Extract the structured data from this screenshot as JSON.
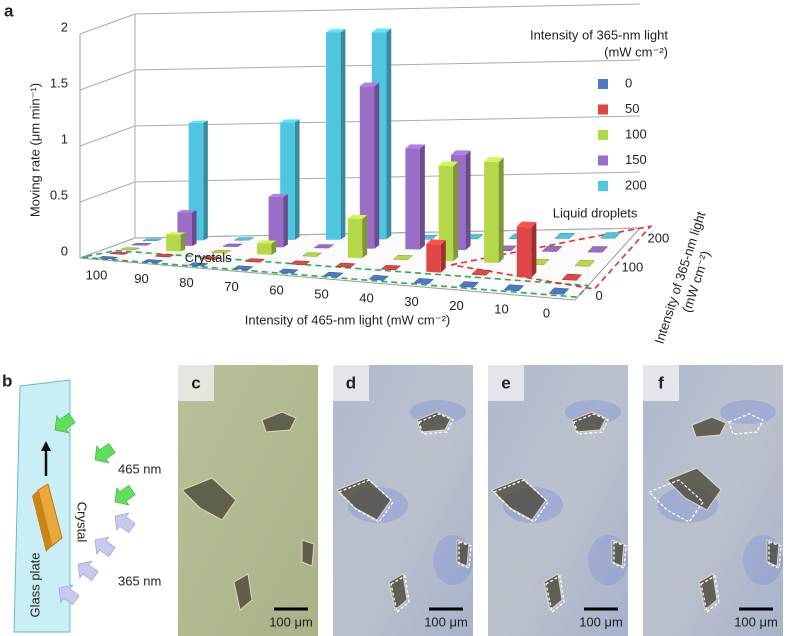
{
  "chart_data": {
    "type": "bar3d",
    "panel_label": "a",
    "y_label": "Moving rate (μm min⁻¹)",
    "x_label": "Intensity of 465-nm light (mW cm⁻²)",
    "depth_label": [
      "Intensity of 365-nm light",
      "(mW cm⁻²)"
    ],
    "legend_title": [
      "Intensity of 365-nm light",
      "(mW cm⁻²)"
    ],
    "categories": [
      100,
      90,
      80,
      70,
      60,
      50,
      40,
      30,
      20,
      10,
      0
    ],
    "series": [
      {
        "name": "0",
        "color": "#4a78c8",
        "values": [
          0,
          0,
          0,
          0,
          0,
          0,
          0,
          0,
          0,
          0,
          0
        ]
      },
      {
        "name": "50",
        "color": "#e04646",
        "values": [
          0,
          0,
          0,
          0,
          0,
          0,
          0,
          0.25,
          0,
          0.45,
          0
        ]
      },
      {
        "name": "100",
        "color": "#b5d84a",
        "values": [
          0,
          0.15,
          0,
          0.1,
          0,
          0.35,
          0,
          0.85,
          0.9,
          0,
          0
        ]
      },
      {
        "name": "150",
        "color": "#9a6ec6",
        "values": [
          0,
          0.3,
          0,
          0.45,
          0,
          1.45,
          0.9,
          0.85,
          0,
          0,
          0
        ]
      },
      {
        "name": "200",
        "color": "#4ec6e0",
        "values": [
          0,
          1.05,
          0,
          1.05,
          1.85,
          1.85,
          0,
          0,
          0,
          0,
          0
        ]
      }
    ],
    "ylim": [
      0,
      2
    ],
    "yticks": [
      0,
      0.5,
      1,
      1.5,
      2
    ],
    "zlim": [
      0,
      200
    ],
    "zticks": [
      0,
      100,
      200
    ],
    "grid": true,
    "annotations": [
      {
        "text": "Crystals",
        "color": "#2ca85a"
      },
      {
        "text": "Liquid droplets",
        "color": "#e03030"
      }
    ]
  },
  "panel_b": {
    "label": "b",
    "light_465": "465 nm",
    "light_365": "365 nm",
    "crystal": "Crystal",
    "glass": "Glass plate"
  },
  "micrographs": [
    {
      "label": "c",
      "scale_bar": "100 μm"
    },
    {
      "label": "d",
      "scale_bar": "100 μm"
    },
    {
      "label": "e",
      "scale_bar": "100 μm"
    },
    {
      "label": "f",
      "scale_bar": "100 μm"
    }
  ]
}
